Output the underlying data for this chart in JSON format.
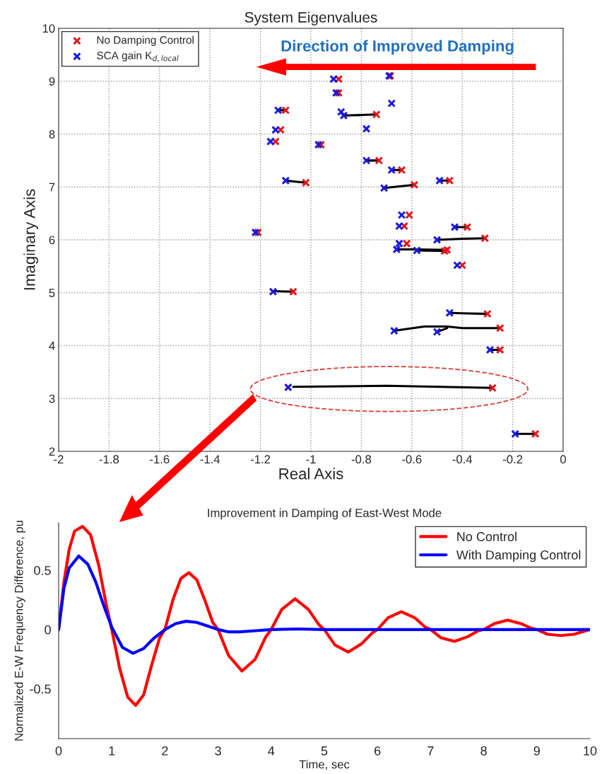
{
  "chart_data": [
    {
      "type": "scatter",
      "title": "System Eigenvalues",
      "xlabel": "Real Axis",
      "ylabel": "Imaginary Axis",
      "xlim": [
        -2,
        0
      ],
      "xticks": [
        -2,
        -1.8,
        -1.6,
        -1.4,
        -1.2,
        -1,
        -0.8,
        -0.6,
        -0.4,
        -0.2,
        0
      ],
      "ylim": [
        2,
        10
      ],
      "yticks": [
        2,
        3,
        4,
        5,
        6,
        7,
        8,
        9,
        10
      ],
      "grid": true,
      "legend": "top left",
      "marker": "cross",
      "annotations": [
        "Direction of Improved Damping"
      ],
      "series": [
        {
          "type": "line",
          "color": "#000000",
          "marker": "none",
          "x": [
            -1.1,
            -1.13,
            null,
            -0.74,
            -0.8,
            -0.87,
            null,
            -0.73,
            -0.78,
            null,
            -0.64,
            -0.68,
            null,
            -0.45,
            -0.49,
            null,
            -1.02,
            -1.06,
            -1.1,
            null,
            -0.59,
            -0.65,
            -0.71,
            null,
            -0.38,
            -0.43,
            null,
            -0.31,
            -0.4,
            -0.5,
            null,
            -0.46,
            -0.58,
            -0.66,
            null,
            -0.47,
            -0.58,
            null,
            -1.07,
            -1.15,
            null,
            -0.3,
            -0.38,
            -0.45,
            null,
            -0.25,
            -0.4,
            -0.46,
            -0.55,
            -0.67,
            null,
            -0.46,
            -0.5,
            null,
            -0.25,
            -0.29,
            null,
            -0.28,
            -0.7,
            -1.07,
            null,
            -0.11,
            -0.19
          ],
          "values": [
            8.45,
            8.45,
            null,
            8.37,
            8.36,
            8.35,
            null,
            7.5,
            7.5,
            null,
            7.32,
            7.32,
            null,
            7.12,
            7.12,
            null,
            7.08,
            7.1,
            7.12,
            null,
            7.04,
            7.01,
            6.98,
            null,
            6.24,
            6.24,
            null,
            6.03,
            6.02,
            6.0,
            null,
            5.81,
            5.82,
            5.82,
            null,
            5.79,
            5.8,
            null,
            5.02,
            5.03,
            null,
            4.6,
            4.61,
            4.62,
            null,
            4.33,
            4.33,
            4.36,
            4.36,
            4.28,
            null,
            4.33,
            4.26,
            null,
            3.92,
            3.92,
            null,
            3.2,
            3.24,
            3.22,
            null,
            2.33,
            2.33
          ]
        },
        {
          "name": "No Damping Control",
          "color": "#e0191b",
          "x": [
            -0.89,
            -0.89,
            -0.685,
            -1.1,
            -0.74,
            -1.12,
            -1.14,
            -0.96,
            -0.73,
            -0.64,
            -0.45,
            -1.02,
            -0.59,
            -0.61,
            -0.63,
            -0.38,
            -1.21,
            -0.31,
            -0.62,
            -0.46,
            -0.47,
            -0.4,
            -1.07,
            -0.3,
            -0.25,
            -0.25,
            -0.28,
            -0.11
          ],
          "values": [
            9.04,
            8.78,
            9.1,
            8.45,
            8.37,
            8.08,
            7.86,
            7.8,
            7.5,
            7.32,
            7.12,
            7.08,
            7.04,
            6.47,
            6.26,
            6.24,
            6.14,
            6.03,
            5.93,
            5.81,
            5.79,
            5.52,
            5.02,
            4.6,
            4.33,
            3.92,
            3.2,
            2.33
          ]
        },
        {
          "name": "SCA gain K$_{d,local}$",
          "color": "#1a1ae0",
          "x": [
            -0.91,
            -0.9,
            -0.69,
            -0.68,
            -1.13,
            -0.88,
            -0.87,
            -0.78,
            -1.14,
            -1.16,
            -0.97,
            -0.78,
            -0.68,
            -0.49,
            -1.1,
            -0.71,
            -0.64,
            -0.65,
            -0.43,
            -1.22,
            -0.5,
            -0.65,
            -0.66,
            -0.58,
            -0.42,
            -1.15,
            -0.45,
            -0.67,
            -0.5,
            -0.29,
            -1.09,
            -0.19
          ],
          "values": [
            9.04,
            8.78,
            9.1,
            8.58,
            8.45,
            8.42,
            8.35,
            8.1,
            8.08,
            7.86,
            7.8,
            7.5,
            7.32,
            7.12,
            7.12,
            6.98,
            6.47,
            6.26,
            6.24,
            6.14,
            6.0,
            5.93,
            5.82,
            5.8,
            5.52,
            5.02,
            4.62,
            4.28,
            4.26,
            3.92,
            3.21,
            2.33
          ]
        }
      ]
    },
    {
      "type": "line",
      "title": "Improvement in Damping of East-West Mode",
      "xlabel": "Time, sec",
      "ylabel": "Normalized E-W Frequency Difference, pu",
      "xlim": [
        0,
        10
      ],
      "xticks": [
        0,
        1,
        2,
        3,
        4,
        5,
        6,
        7,
        8,
        9,
        10
      ],
      "ylim": [
        -0.92,
        0.9
      ],
      "yticks": [
        -0.5,
        0,
        0.5
      ],
      "grid": false,
      "legend": "top right",
      "series": [
        {
          "name": "No Control",
          "color": "#ff0000",
          "x": [
            0,
            0.1,
            0.2,
            0.3,
            0.45,
            0.6,
            0.75,
            0.9,
            1.0,
            1.15,
            1.3,
            1.45,
            1.6,
            1.75,
            1.9,
            2.0,
            2.15,
            2.3,
            2.45,
            2.6,
            2.75,
            2.9,
            3.0,
            3.2,
            3.45,
            3.7,
            3.9,
            4.0,
            4.2,
            4.45,
            4.7,
            4.9,
            5.0,
            5.2,
            5.45,
            5.7,
            5.9,
            6.0,
            6.2,
            6.45,
            6.7,
            6.9,
            7.0,
            7.2,
            7.45,
            7.7,
            7.9,
            8.0,
            8.2,
            8.45,
            8.7,
            8.9,
            9.0,
            9.2,
            9.45,
            9.7,
            10
          ],
          "values": [
            0,
            0.4,
            0.68,
            0.83,
            0.87,
            0.8,
            0.55,
            0.2,
            0,
            -0.33,
            -0.57,
            -0.64,
            -0.55,
            -0.3,
            -0.07,
            0,
            0.25,
            0.43,
            0.48,
            0.42,
            0.25,
            0.06,
            0,
            -0.22,
            -0.35,
            -0.25,
            -0.06,
            0,
            0.17,
            0.26,
            0.17,
            0.04,
            0,
            -0.13,
            -0.19,
            -0.12,
            -0.03,
            0,
            0.1,
            0.15,
            0.1,
            0.02,
            0,
            -0.07,
            -0.1,
            -0.06,
            -0.01,
            0,
            0.05,
            0.08,
            0.05,
            0.01,
            0,
            -0.04,
            -0.05,
            -0.04,
            0
          ]
        },
        {
          "name": "With Damping Control",
          "color": "#0000ff",
          "x": [
            0,
            0.1,
            0.2,
            0.38,
            0.55,
            0.7,
            0.85,
            1.0,
            1.2,
            1.4,
            1.6,
            1.8,
            2.0,
            2.2,
            2.4,
            2.6,
            2.8,
            3.0,
            3.2,
            3.4,
            3.7,
            4.0,
            4.5,
            5,
            6,
            7,
            8,
            9,
            10
          ],
          "values": [
            0,
            0.35,
            0.52,
            0.62,
            0.55,
            0.4,
            0.2,
            0.02,
            -0.15,
            -0.2,
            -0.16,
            -0.07,
            0,
            0.05,
            0.07,
            0.06,
            0.03,
            0,
            -0.02,
            -0.02,
            -0.01,
            0,
            0.005,
            0,
            0,
            0,
            0,
            0,
            0
          ]
        }
      ]
    }
  ]
}
